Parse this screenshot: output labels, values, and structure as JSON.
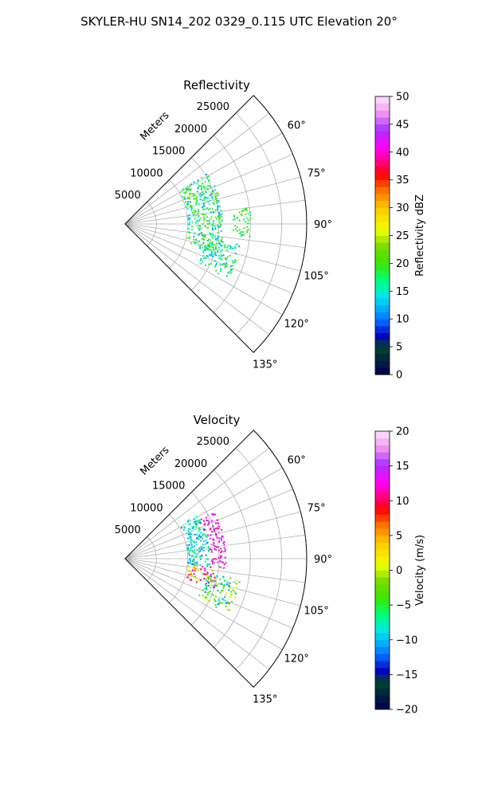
{
  "figure": {
    "suptitle": "SKYLER-HU  SN14_202  0329_0.115 UTC Elevation 20°"
  },
  "chart_data": [
    {
      "type": "polar-sector-scatter",
      "title": "Reflectivity",
      "radial_label": "Meters",
      "radial_ticks": [
        5000,
        10000,
        15000,
        20000,
        25000
      ],
      "radial_tick_labels": [
        "5000",
        "10000",
        "15000",
        "20000",
        "25000"
      ],
      "rlim": [
        0,
        29000
      ],
      "theta_range_deg": [
        45,
        135
      ],
      "theta_ticks_deg": [
        60,
        75,
        90,
        105,
        120,
        135
      ],
      "theta_tick_labels": [
        "60°",
        "75°",
        "90°",
        "105°",
        "120°",
        "135°"
      ],
      "grid": true,
      "colorbar": {
        "label": "Reflectivity dBZ",
        "min": 0,
        "max": 50,
        "ticks": [
          0,
          5,
          10,
          15,
          20,
          25,
          30,
          35,
          40,
          45,
          50
        ],
        "tick_labels": [
          "0",
          "5",
          "10",
          "15",
          "20",
          "25",
          "30",
          "35",
          "40",
          "45",
          "50"
        ]
      },
      "echo_regions": [
        {
          "theta_deg": [
            58,
            108
          ],
          "range_m": [
            10000,
            15500
          ],
          "value_range": [
            11,
            24
          ]
        },
        {
          "theta_deg": [
            100,
            118
          ],
          "range_m": [
            13000,
            18500
          ],
          "value_range": [
            11,
            21
          ]
        },
        {
          "theta_deg": [
            82,
            96
          ],
          "range_m": [
            17000,
            20000
          ],
          "value_range": [
            15,
            22
          ]
        }
      ]
    },
    {
      "type": "polar-sector-scatter",
      "title": "Velocity",
      "radial_label": "Meters",
      "radial_ticks": [
        5000,
        10000,
        15000,
        20000,
        25000
      ],
      "radial_tick_labels": [
        "5000",
        "10000",
        "15000",
        "20000",
        "25000"
      ],
      "rlim": [
        0,
        29000
      ],
      "theta_range_deg": [
        45,
        135
      ],
      "theta_ticks_deg": [
        60,
        75,
        90,
        105,
        120,
        135
      ],
      "theta_tick_labels": [
        "60°",
        "75°",
        "90°",
        "105°",
        "120°",
        "135°"
      ],
      "grid": true,
      "colorbar": {
        "label": "Velocity (m/s)",
        "min": -20,
        "max": 20,
        "ticks": [
          -20,
          -15,
          -10,
          -5,
          0,
          5,
          10,
          15,
          20
        ],
        "tick_labels": [
          "−20",
          "−15",
          "−10",
          "−5",
          "0",
          "5",
          "10",
          "15",
          "20"
        ]
      },
      "echo_regions": [
        {
          "theta_deg": [
            58,
            95
          ],
          "range_m": [
            10000,
            13500
          ],
          "value_range": [
            -12,
            -5
          ]
        },
        {
          "theta_deg": [
            60,
            95
          ],
          "range_m": [
            13500,
            16000
          ],
          "value_range": [
            10,
            17
          ]
        },
        {
          "theta_deg": [
            95,
            108
          ],
          "range_m": [
            10000,
            15000
          ],
          "value_range": [
            -2,
            16
          ]
        },
        {
          "theta_deg": [
            100,
            118
          ],
          "range_m": [
            13000,
            18500
          ],
          "value_range": [
            -12,
            3
          ]
        }
      ]
    }
  ]
}
